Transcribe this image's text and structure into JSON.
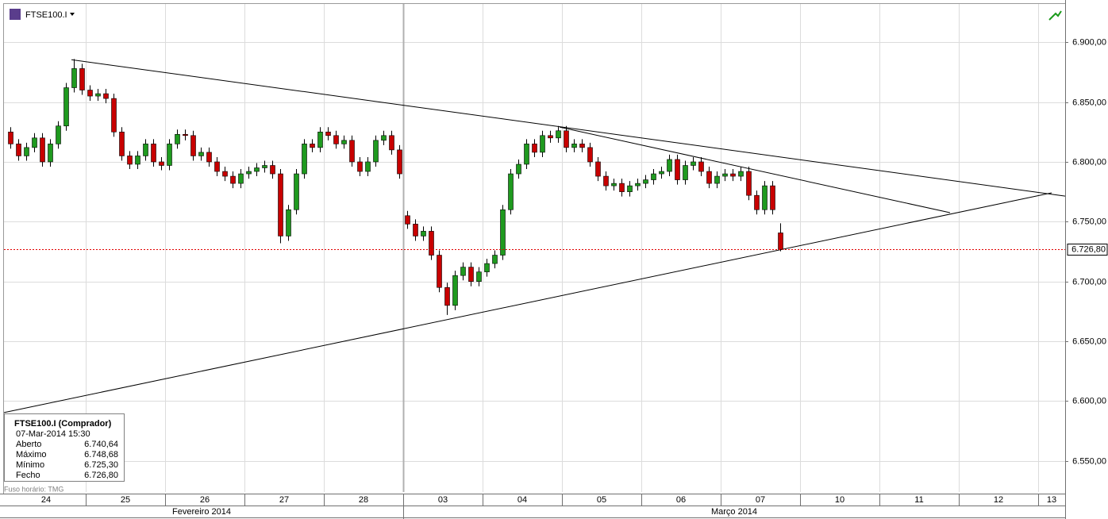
{
  "chart_data": {
    "type": "candlestick",
    "symbol": "FTSE100.I",
    "timezone": "Fuso horário: TMG",
    "ylim": [
      6524,
      6932
    ],
    "xlim": [
      -0.03,
      13.34
    ],
    "yticks": [
      {
        "value": 6550,
        "label": "6.550,00"
      },
      {
        "value": 6600,
        "label": "6.600,00"
      },
      {
        "value": 6650,
        "label": "6.650,00"
      },
      {
        "value": 6700,
        "label": "6.700,00"
      },
      {
        "value": 6750,
        "label": "6.750,00"
      },
      {
        "value": 6800,
        "label": "6.800,00"
      },
      {
        "value": 6850,
        "label": "6.850,00"
      },
      {
        "value": 6900,
        "label": "6.900,00"
      }
    ],
    "days": [
      "24",
      "25",
      "26",
      "27",
      "28",
      "03",
      "04",
      "05",
      "06",
      "07",
      "10",
      "11",
      "12",
      "13"
    ],
    "months": [
      "Fevereiro 2014",
      "Março 2014"
    ],
    "grid": true,
    "up_color": "#1f9a1f",
    "down_color": "#c80000",
    "last": {
      "value": 6726.8,
      "label": "6.726,80"
    },
    "candles": {
      "x": [
        0.05,
        0.15,
        0.25,
        0.35,
        0.45,
        0.55,
        0.65,
        0.75,
        0.85,
        0.95,
        1.05,
        1.15,
        1.25,
        1.35,
        1.45,
        1.55,
        1.65,
        1.75,
        1.85,
        1.95,
        2.05,
        2.15,
        2.25,
        2.35,
        2.45,
        2.55,
        2.65,
        2.75,
        2.85,
        2.95,
        3.05,
        3.15,
        3.25,
        3.35,
        3.45,
        3.55,
        3.65,
        3.75,
        3.85,
        3.95,
        4.05,
        4.15,
        4.25,
        4.35,
        4.45,
        4.55,
        4.65,
        4.75,
        4.85,
        4.95,
        5.05,
        5.15,
        5.25,
        5.35,
        5.45,
        5.55,
        5.65,
        5.75,
        5.85,
        5.95,
        6.05,
        6.15,
        6.25,
        6.35,
        6.45,
        6.55,
        6.65,
        6.75,
        6.85,
        6.95,
        7.05,
        7.15,
        7.25,
        7.35,
        7.45,
        7.55,
        7.65,
        7.75,
        7.85,
        7.95,
        8.05,
        8.15,
        8.25,
        8.35,
        8.45,
        8.55,
        8.65,
        8.75,
        8.85,
        8.95,
        9.05,
        9.15,
        9.25,
        9.35,
        9.45,
        9.55,
        9.65,
        9.75
      ],
      "open": [
        6825,
        6815,
        6805,
        6812,
        6820,
        6800,
        6815,
        6830,
        6862,
        6878,
        6860,
        6855,
        6857,
        6853,
        6825,
        6805,
        6798,
        6805,
        6815,
        6800,
        6797,
        6815,
        6823,
        6822,
        6805,
        6808,
        6800,
        6792,
        6788,
        6782,
        6790,
        6792,
        6795,
        6797,
        6790,
        6738,
        6760,
        6790,
        6815,
        6812,
        6825,
        6822,
        6815,
        6818,
        6800,
        6792,
        6800,
        6818,
        6822,
        6810,
        6755,
        6748,
        6738,
        6742,
        6722,
        6695,
        6680,
        6705,
        6712,
        6700,
        6708,
        6715,
        6722,
        6760,
        6790,
        6798,
        6815,
        6808,
        6822,
        6820,
        6826,
        6812,
        6815,
        6812,
        6800,
        6788,
        6780,
        6782,
        6775,
        6780,
        6782,
        6785,
        6790,
        6792,
        6802,
        6785,
        6797,
        6800,
        6792,
        6782,
        6788,
        6790,
        6788,
        6792,
        6772,
        6760,
        6780,
        6740.64
      ],
      "high": [
        6829,
        6819,
        6816,
        6824,
        6824,
        6819,
        6834,
        6866,
        6886,
        6882,
        6864,
        6861,
        6861,
        6857,
        6829,
        6809,
        6809,
        6819,
        6819,
        6804,
        6819,
        6827,
        6827,
        6826,
        6812,
        6812,
        6804,
        6796,
        6792,
        6794,
        6796,
        6799,
        6801,
        6801,
        6794,
        6764,
        6794,
        6819,
        6819,
        6829,
        6829,
        6826,
        6822,
        6822,
        6804,
        6804,
        6822,
        6826,
        6826,
        6814,
        6759,
        6752,
        6746,
        6746,
        6726,
        6699,
        6709,
        6716,
        6716,
        6712,
        6719,
        6726,
        6764,
        6794,
        6802,
        6819,
        6819,
        6826,
        6826,
        6830,
        6830,
        6819,
        6819,
        6816,
        6804,
        6792,
        6786,
        6786,
        6784,
        6786,
        6789,
        6794,
        6796,
        6806,
        6806,
        6801,
        6804,
        6804,
        6796,
        6792,
        6794,
        6794,
        6796,
        6796,
        6776,
        6784,
        6784,
        6748.68
      ],
      "low": [
        6811,
        6801,
        6801,
        6808,
        6796,
        6796,
        6811,
        6826,
        6858,
        6856,
        6851,
        6851,
        6849,
        6821,
        6801,
        6794,
        6794,
        6801,
        6796,
        6793,
        6793,
        6811,
        6818,
        6801,
        6801,
        6796,
        6788,
        6784,
        6778,
        6778,
        6786,
        6788,
        6791,
        6786,
        6732,
        6734,
        6756,
        6786,
        6808,
        6808,
        6818,
        6811,
        6811,
        6796,
        6788,
        6788,
        6796,
        6814,
        6806,
        6786,
        6744,
        6734,
        6734,
        6718,
        6691,
        6672,
        6676,
        6701,
        6696,
        6696,
        6704,
        6711,
        6718,
        6756,
        6786,
        6794,
        6804,
        6804,
        6816,
        6816,
        6808,
        6808,
        6808,
        6796,
        6784,
        6776,
        6776,
        6771,
        6771,
        6776,
        6778,
        6781,
        6786,
        6788,
        6781,
        6781,
        6793,
        6788,
        6778,
        6778,
        6784,
        6784,
        6784,
        6768,
        6756,
        6756,
        6756,
        6725.3
      ],
      "close": [
        6815,
        6805,
        6812,
        6820,
        6800,
        6815,
        6830,
        6862,
        6878,
        6860,
        6855,
        6857,
        6853,
        6825,
        6805,
        6798,
        6805,
        6815,
        6800,
        6797,
        6815,
        6823,
        6822,
        6805,
        6808,
        6800,
        6792,
        6788,
        6782,
        6790,
        6792,
        6795,
        6797,
        6790,
        6738,
        6760,
        6790,
        6815,
        6812,
        6825,
        6822,
        6815,
        6818,
        6800,
        6792,
        6800,
        6818,
        6822,
        6810,
        6790,
        6748,
        6738,
        6742,
        6722,
        6695,
        6680,
        6705,
        6712,
        6700,
        6708,
        6715,
        6722,
        6760,
        6790,
        6798,
        6815,
        6808,
        6822,
        6820,
        6826,
        6812,
        6815,
        6812,
        6800,
        6788,
        6780,
        6782,
        6775,
        6780,
        6782,
        6785,
        6790,
        6792,
        6802,
        6785,
        6797,
        6800,
        6792,
        6782,
        6788,
        6790,
        6788,
        6792,
        6772,
        6760,
        6780,
        6760,
        6726.8
      ]
    },
    "trendlines": [
      {
        "x": [
          0.82,
          13.34
        ],
        "y": [
          6885.4,
          6771.4
        ]
      },
      {
        "x": [
          6.97,
          11.89
        ],
        "y": [
          6829.1,
          6757.5
        ]
      },
      {
        "x": [
          -0.03,
          13.17
        ],
        "y": [
          6590.4,
          6774.1
        ]
      }
    ],
    "info": {
      "title": "FTSE100.I (Comprador)",
      "time": "07-Mar-2014 15:30",
      "rows": [
        [
          "Aberto",
          "6.740,64"
        ],
        [
          "Máximo",
          "6.748,68"
        ],
        [
          "Mínimo",
          "6.725,30"
        ],
        [
          "Fecho",
          "6.726,80"
        ]
      ]
    }
  }
}
